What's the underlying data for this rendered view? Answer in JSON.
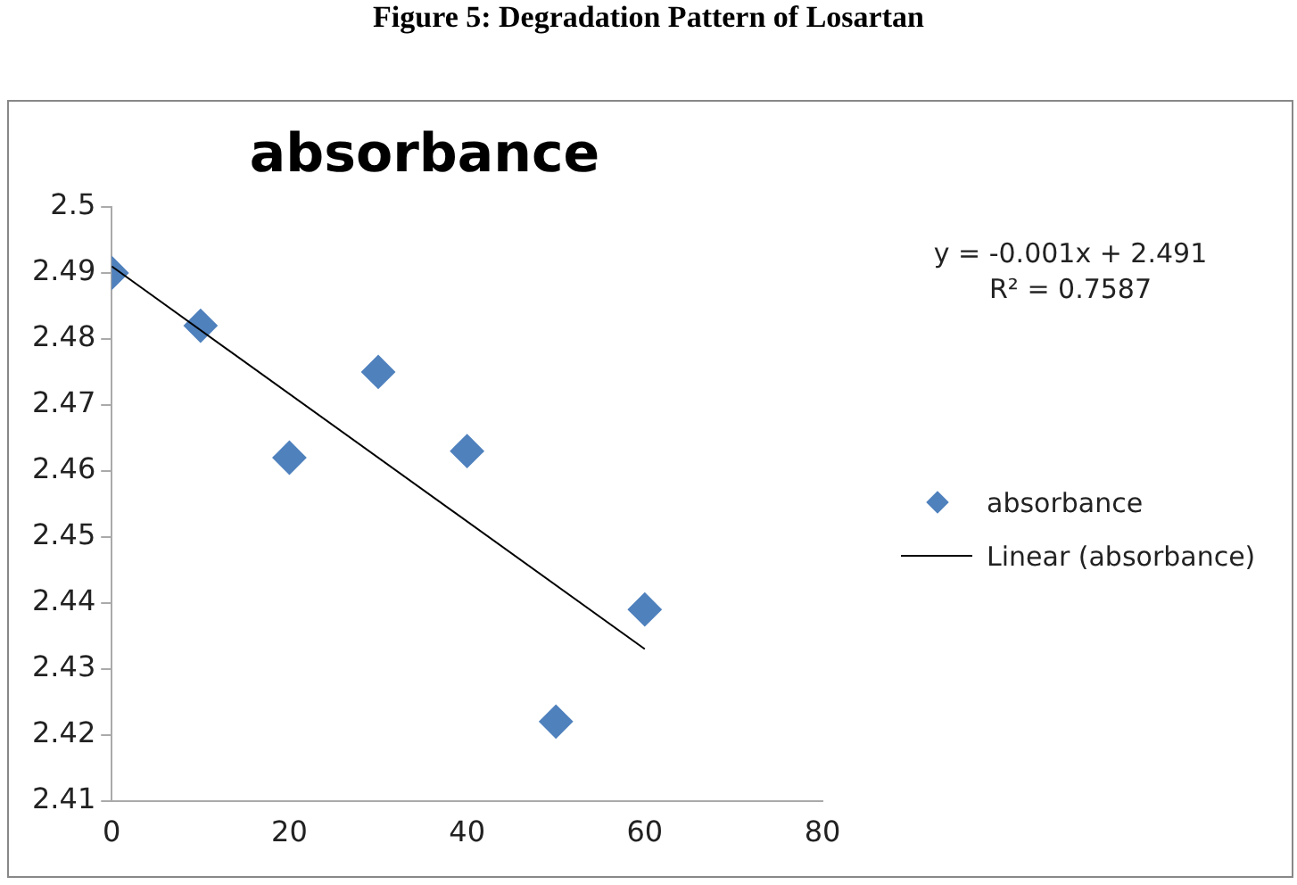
{
  "chart_data": {
    "type": "scatter",
    "title": "absorbance",
    "annotations": [
      "Figure 5: Degradation Pattern of Losartan",
      "y = -0.001x + 2.491",
      "R² = 0.7587"
    ],
    "x": [
      0,
      10,
      20,
      30,
      40,
      50,
      60
    ],
    "series": [
      {
        "name": "absorbance",
        "color": "#4f81bd",
        "values": [
          2.49,
          2.482,
          2.462,
          2.475,
          2.463,
          2.422,
          2.439
        ]
      },
      {
        "name": "Linear (absorbance)",
        "type": "line",
        "color": "#000000",
        "x": [
          0,
          60
        ],
        "values": [
          2.491,
          2.433
        ],
        "marker": "none"
      }
    ],
    "xlim": [
      0,
      80
    ],
    "xticks": [
      0,
      20,
      40,
      60,
      80
    ],
    "ylim": [
      2.41,
      2.5
    ],
    "yticks": [
      2.41,
      2.42,
      2.43,
      2.44,
      2.45,
      2.46,
      2.47,
      2.48,
      2.49,
      2.5
    ],
    "grid": false,
    "legend": "right",
    "marker": "diamond"
  }
}
